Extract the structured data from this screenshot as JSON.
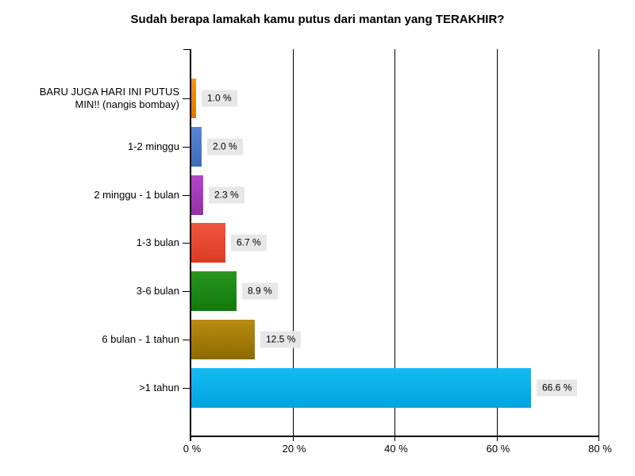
{
  "chart_data": {
    "type": "bar",
    "orientation": "horizontal",
    "title": "Sudah berapa lamakah kamu putus dari mantan yang TERAKHIR?",
    "categories": [
      "BARU JUGA HARI INI PUTUS\nMIN!! (nangis bombay)",
      "1-2 minggu",
      "2 minggu - 1 bulan",
      "1-3 bulan",
      "3-6 bulan",
      "6 bulan - 1 tahun",
      ">1 tahun"
    ],
    "values": [
      1.0,
      2.0,
      2.3,
      6.7,
      8.9,
      12.5,
      66.6
    ],
    "value_labels": [
      "1.0 %",
      "2.0 %",
      "2.3 %",
      "6.7 %",
      "8.9 %",
      "12.5 %",
      "66.6 %"
    ],
    "bar_colors": [
      {
        "top": "#F7941E",
        "bottom": "#DD7500"
      },
      {
        "top": "#5A85D7",
        "bottom": "#3E6CBB"
      },
      {
        "top": "#B646CB",
        "bottom": "#9130A4"
      },
      {
        "top": "#F05540",
        "bottom": "#DC3B22"
      },
      {
        "top": "#28951F",
        "bottom": "#117A0C"
      },
      {
        "top": "#BA8C12",
        "bottom": "#8D6B00"
      },
      {
        "top": "#16BAF2",
        "bottom": "#00A5E0"
      }
    ],
    "x_ticks": [
      "0 %",
      "20 %",
      "40 %",
      "60 %",
      "80 %"
    ],
    "x_tick_values": [
      0,
      20,
      40,
      60,
      80
    ],
    "xlim": [
      0,
      80
    ],
    "grid": true,
    "legend": "none",
    "value_label_bg": "#E7E7E7",
    "axis_color": "#000000",
    "background": "#FFFFFF"
  }
}
